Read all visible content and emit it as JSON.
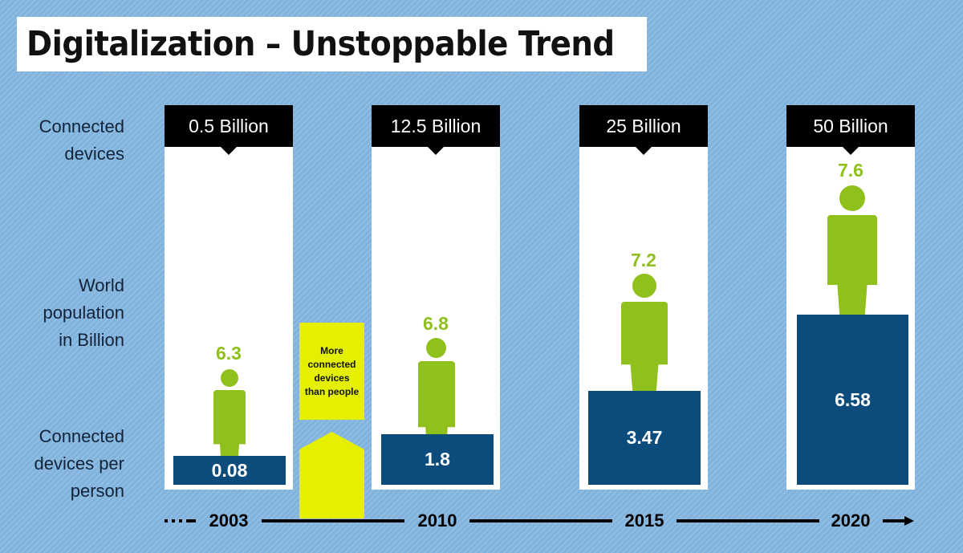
{
  "title": "Digitalization – Unstoppable Trend",
  "row_labels": {
    "connected_devices": [
      "Connected",
      "devices"
    ],
    "world_population": [
      "World",
      "population",
      "in Billion"
    ],
    "devices_per_person": [
      "Connected",
      "devices per",
      "person"
    ]
  },
  "columns": [
    {
      "year": "2003",
      "connected_devices": "0.5 Billion",
      "world_population": "6.3",
      "devices_per_person": "0.08"
    },
    {
      "year": "2010",
      "connected_devices": "12.5 Billion",
      "world_population": "6.8",
      "devices_per_person": "1.8"
    },
    {
      "year": "2015",
      "connected_devices": "25 Billion",
      "world_population": "7.2",
      "devices_per_person": "3.47"
    },
    {
      "year": "2020",
      "connected_devices": "50 Billion",
      "world_population": "7.6",
      "devices_per_person": "6.58"
    }
  ],
  "note": "More connected devices than people",
  "colors": {
    "background": "#7fb2dc",
    "header": "#000000",
    "population": "#8fc01b",
    "devices_bar": "#0b4c7c",
    "note": "#e4f000"
  }
}
